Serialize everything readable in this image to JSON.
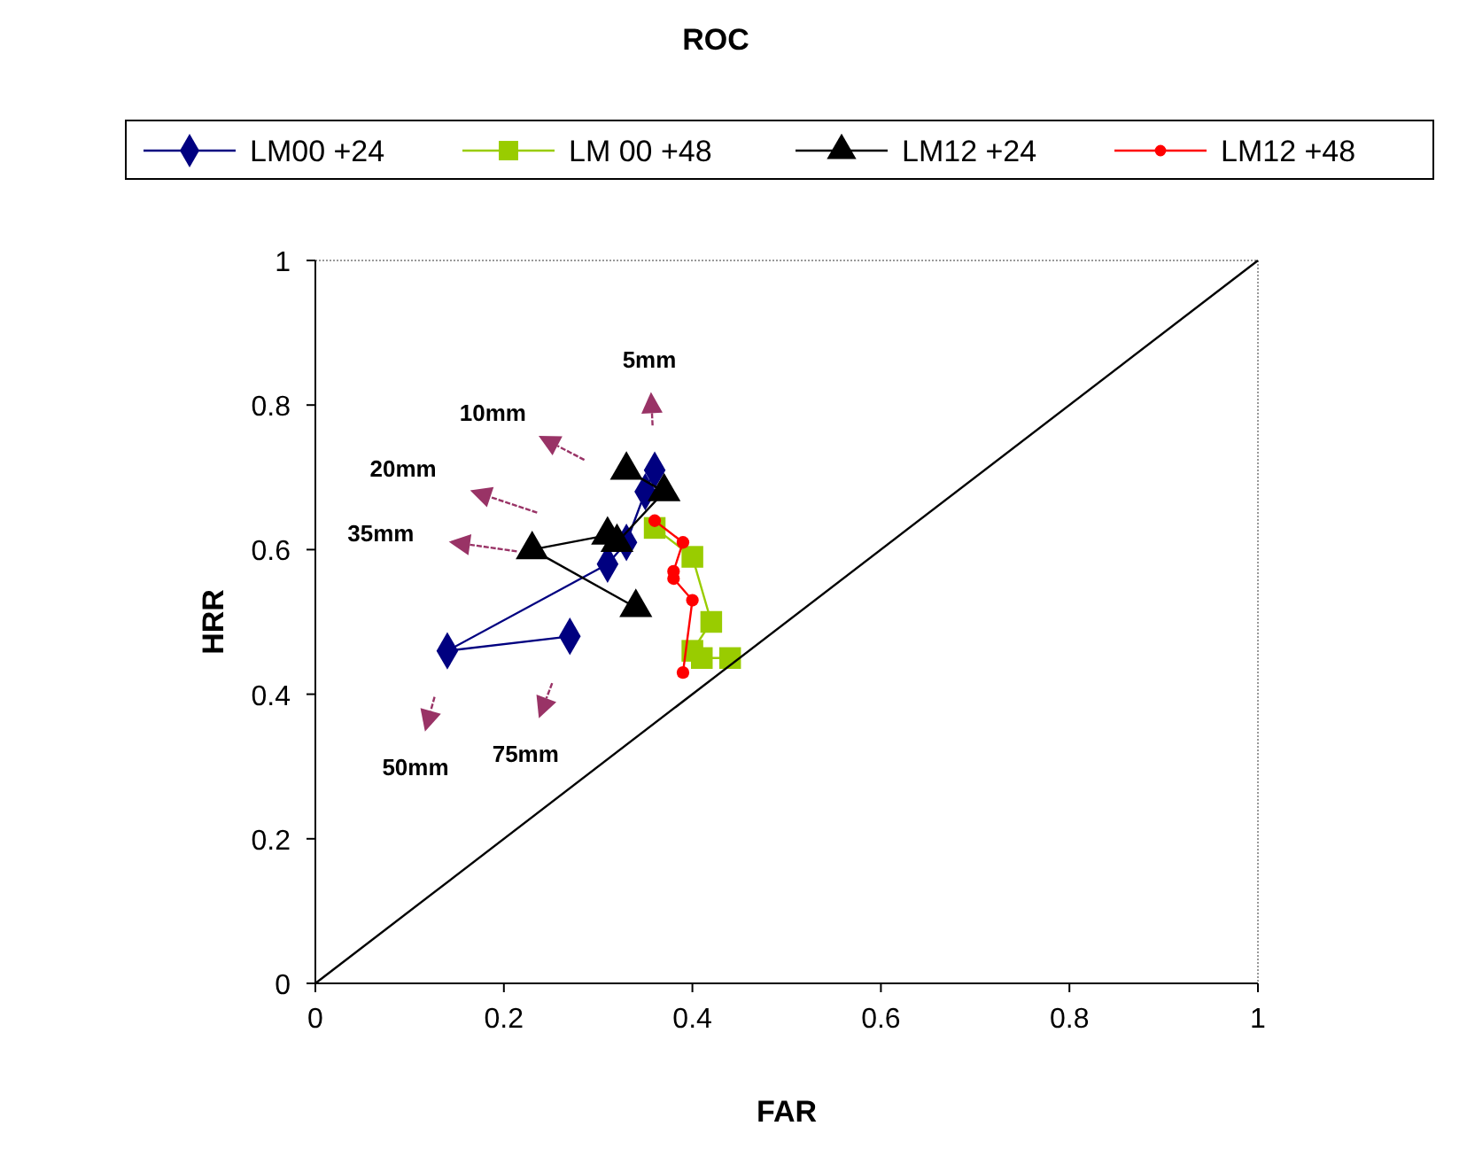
{
  "chart_data": {
    "type": "line",
    "title": "ROC",
    "xlabel": "FAR",
    "ylabel": "HRR",
    "xlim": [
      0,
      1
    ],
    "ylim": [
      0,
      1
    ],
    "xticks": [
      0,
      0.2,
      0.4,
      0.6,
      0.8,
      1
    ],
    "yticks": [
      0,
      0.2,
      0.4,
      0.6,
      0.8,
      1
    ],
    "grid": false,
    "legend": "top",
    "series": [
      {
        "name": "LM00 +24",
        "color": "#000080",
        "marker": "diamond",
        "x": [
          0.36,
          0.35,
          0.33,
          0.31,
          0.14,
          0.27
        ],
        "values": [
          0.71,
          0.68,
          0.61,
          0.58,
          0.46,
          0.48
        ]
      },
      {
        "name": "LM 00 +48",
        "color": "#99cc00",
        "marker": "square",
        "x": [
          0.36,
          0.4,
          0.42,
          0.4,
          0.41,
          0.44
        ],
        "values": [
          0.63,
          0.59,
          0.5,
          0.46,
          0.45,
          0.45
        ]
      },
      {
        "name": "LM12 +24",
        "color": "#000000",
        "marker": "triangle",
        "x": [
          0.33,
          0.37,
          0.32,
          0.31,
          0.23,
          0.34
        ],
        "values": [
          0.71,
          0.68,
          0.61,
          0.62,
          0.6,
          0.52
        ]
      },
      {
        "name": "LM12 +48",
        "color": "#ff0000",
        "marker": "circle",
        "x": [
          0.36,
          0.39,
          0.38,
          0.38,
          0.4,
          0.39
        ],
        "values": [
          0.64,
          0.61,
          0.57,
          0.56,
          0.53,
          0.43
        ]
      },
      {
        "color": "#000000",
        "marker": "none",
        "x": [
          0,
          1
        ],
        "values": [
          0,
          1
        ]
      }
    ],
    "annotations": [
      "5mm",
      "10mm",
      "20mm",
      "35mm",
      "50mm",
      "75mm"
    ]
  }
}
